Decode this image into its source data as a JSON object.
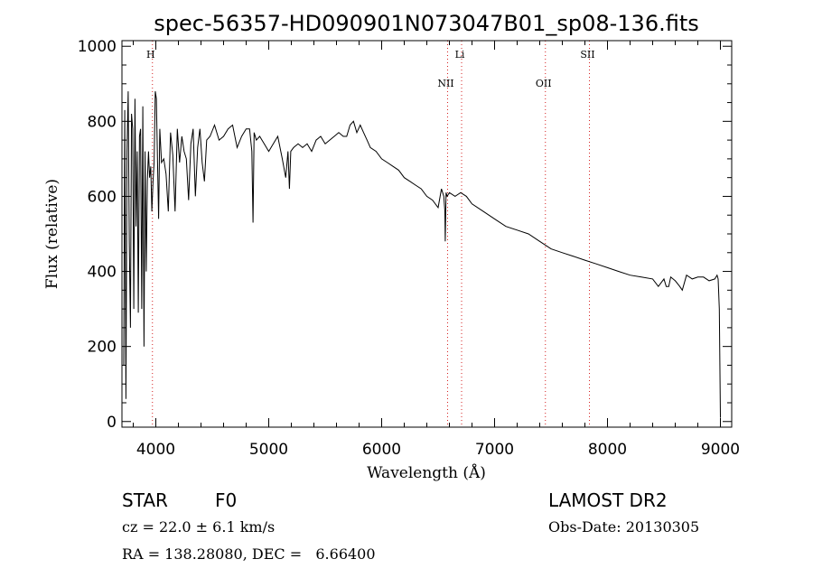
{
  "chart_data": {
    "type": "line",
    "title": "spec-56357-HD090901N073047B01_sp08-136.fits",
    "xlabel": "Wavelength (Å)",
    "ylabel": "Flux (relative)",
    "xlim": [
      3700,
      9100
    ],
    "ylim": [
      -15,
      1015
    ],
    "x_ticks": [
      4000,
      5000,
      6000,
      7000,
      8000,
      9000
    ],
    "y_ticks": [
      0,
      200,
      400,
      600,
      800,
      1000
    ],
    "grid": false,
    "line_color": "#000000",
    "marker_color": "#d62020",
    "spectral_lines": [
      {
        "label": "H",
        "wavelength": 3970
      },
      {
        "label": "NII",
        "wavelength": 6584
      },
      {
        "label": "Li",
        "wavelength": 6708
      },
      {
        "label": "OII",
        "wavelength": 7450
      },
      {
        "label": "SII",
        "wavelength": 7840
      }
    ],
    "series": [
      {
        "x": [
          3716,
          3725,
          3735,
          3745,
          3755,
          3765,
          3775,
          3785,
          3795,
          3805,
          3815,
          3825,
          3835,
          3845,
          3855,
          3865,
          3875,
          3885,
          3895,
          3905,
          3915,
          3925,
          3935,
          3945,
          3955,
          3965,
          3975,
          3985,
          3995,
          4005,
          4015,
          4025,
          4035,
          4050,
          4070,
          4090,
          4110,
          4130,
          4150,
          4170,
          4190,
          4210,
          4230,
          4250,
          4270,
          4290,
          4310,
          4330,
          4350,
          4370,
          4390,
          4410,
          4430,
          4450,
          4480,
          4520,
          4560,
          4600,
          4640,
          4680,
          4720,
          4760,
          4800,
          4830,
          4850,
          4861,
          4870,
          4890,
          4920,
          4960,
          5000,
          5040,
          5080,
          5120,
          5150,
          5170,
          5183,
          5195,
          5220,
          5260,
          5300,
          5340,
          5380,
          5420,
          5460,
          5500,
          5540,
          5580,
          5620,
          5660,
          5690,
          5720,
          5750,
          5780,
          5810,
          5840,
          5870,
          5900,
          5950,
          6000,
          6050,
          6100,
          6150,
          6200,
          6250,
          6300,
          6350,
          6400,
          6450,
          6500,
          6530,
          6550,
          6560,
          6563,
          6570,
          6580,
          6600,
          6650,
          6700,
          6750,
          6800,
          6900,
          7000,
          7100,
          7200,
          7300,
          7400,
          7500,
          7600,
          7700,
          7800,
          7900,
          8000,
          8100,
          8200,
          8300,
          8400,
          8450,
          8500,
          8520,
          8542,
          8560,
          8600,
          8640,
          8662,
          8700,
          8750,
          8800,
          8850,
          8900,
          8950,
          8970,
          8980,
          8990,
          9000
        ],
        "y": [
          150,
          830,
          60,
          720,
          880,
          480,
          250,
          820,
          780,
          300,
          860,
          520,
          720,
          290,
          760,
          780,
          300,
          840,
          200,
          720,
          400,
          640,
          720,
          650,
          680,
          560,
          640,
          690,
          880,
          860,
          690,
          540,
          780,
          690,
          700,
          660,
          560,
          770,
          710,
          560,
          780,
          690,
          760,
          720,
          700,
          590,
          740,
          780,
          600,
          730,
          780,
          690,
          640,
          750,
          760,
          790,
          750,
          760,
          780,
          790,
          730,
          760,
          780,
          780,
          720,
          530,
          770,
          750,
          760,
          740,
          720,
          740,
          760,
          700,
          650,
          720,
          620,
          720,
          730,
          740,
          730,
          740,
          720,
          750,
          760,
          740,
          750,
          760,
          770,
          760,
          760,
          790,
          800,
          770,
          790,
          770,
          750,
          730,
          720,
          700,
          690,
          680,
          670,
          650,
          640,
          630,
          620,
          600,
          590,
          570,
          620,
          600,
          560,
          480,
          610,
          600,
          610,
          600,
          610,
          600,
          580,
          560,
          540,
          520,
          510,
          500,
          480,
          460,
          450,
          440,
          430,
          420,
          410,
          400,
          390,
          385,
          380,
          360,
          380,
          360,
          360,
          385,
          375,
          360,
          350,
          390,
          380,
          385,
          385,
          375,
          380,
          390,
          380,
          300,
          10
        ]
      }
    ]
  },
  "labels": {
    "object_class": "STAR",
    "subclass": "F0",
    "survey": "LAMOST DR2",
    "cz": "cz = 22.0 ± 6.1 km/s",
    "obs_date": "Obs-Date: 20130305",
    "coords": "RA = 138.28080, DEC =   6.66400"
  }
}
